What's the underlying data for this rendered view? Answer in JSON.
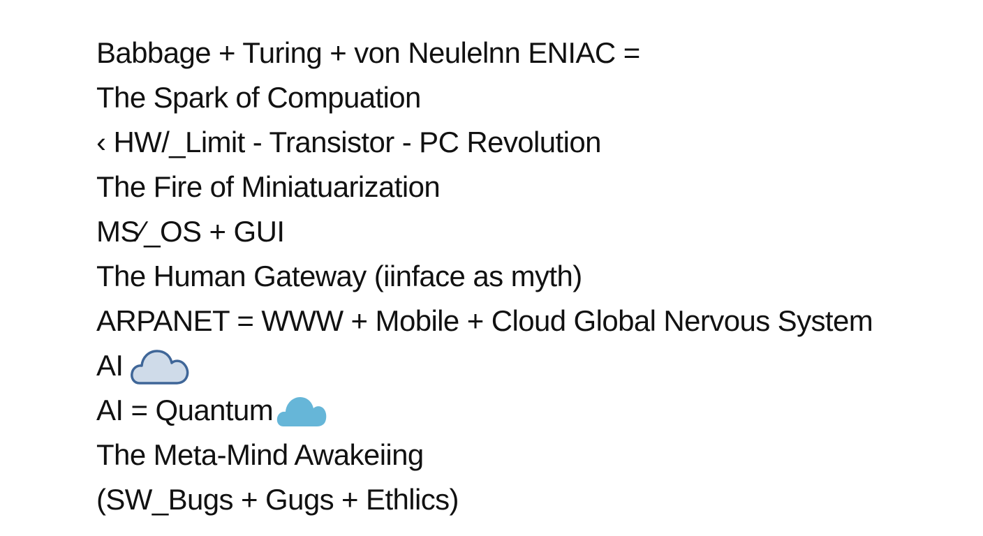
{
  "lines": [
    "Babbage + Turing + von Neulelnn ENIAC =",
    "The Spark of Compuation",
    "‹ HW/_Limit - Transistor - PC Revolution",
    "The Fire of Miniatuarization",
    "MS⁄_OS + GUI",
    "The Human Gateway (iinface as myth)",
    "ARPANET = WWW + Mobile + Cloud Global Nervous System",
    "AI",
    "AI = Quantum",
    "The Meta-Mind Awakeiing",
    "(SW_Bugs + Gugs + Ethlics)"
  ],
  "icons": {
    "outline_cloud": "cloud-outline-icon",
    "solid_cloud": "cloud-solid-icon"
  },
  "colors": {
    "text": "#111111",
    "cloud_outline_stroke": "#3f6698",
    "cloud_outline_fill": "#cfdbe9",
    "cloud_solid_fill": "#66b6d8"
  }
}
